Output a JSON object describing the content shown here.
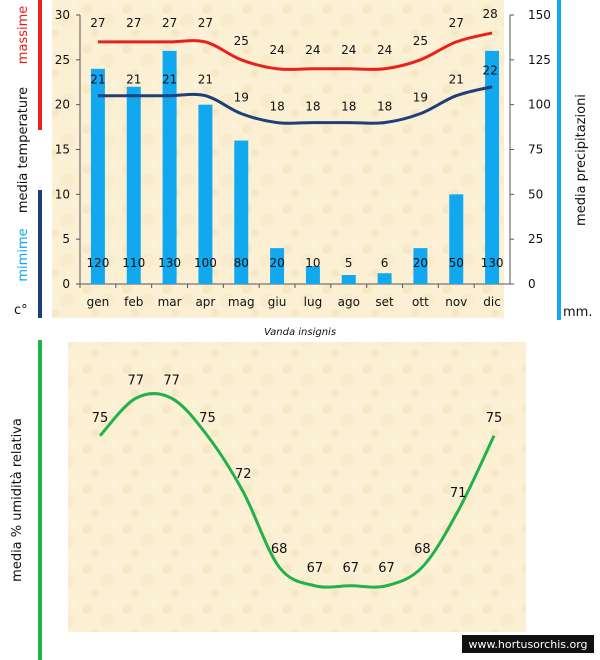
{
  "chart_data": [
    {
      "type": "bar+line",
      "title": "Vanda insignis",
      "categories": [
        "gen",
        "feb",
        "mar",
        "apr",
        "mag",
        "giu",
        "lug",
        "ago",
        "set",
        "ott",
        "nov",
        "dic"
      ],
      "left_axis": {
        "label_parts": [
          "media  temperature",
          "massime",
          "mimime"
        ],
        "unit": "c°",
        "ylim": [
          0,
          30
        ],
        "ticks": [
          0,
          5,
          10,
          15,
          20,
          25,
          30
        ]
      },
      "right_axis": {
        "label": "media  precipitazioni",
        "unit": "mm.",
        "ylim": [
          0,
          150
        ],
        "ticks": [
          0,
          25,
          50,
          75,
          100,
          125,
          150
        ]
      },
      "series": [
        {
          "name": "massime",
          "kind": "line",
          "axis": "left",
          "color": "#e8211b",
          "values": [
            27,
            27,
            27,
            27,
            25,
            24,
            24,
            24,
            24,
            25,
            27,
            28
          ]
        },
        {
          "name": "mimime",
          "kind": "line",
          "axis": "left",
          "color": "#1f3f7a",
          "values": [
            21,
            21,
            21,
            21,
            19,
            18,
            18,
            18,
            18,
            19,
            21,
            22
          ]
        },
        {
          "name": "precipitazioni",
          "kind": "bar",
          "axis": "right",
          "color": "#12a8ef",
          "values": [
            120,
            110,
            130,
            100,
            80,
            20,
            10,
            5,
            6,
            20,
            50,
            130
          ]
        }
      ]
    },
    {
      "type": "line",
      "ylabel": "media %  umidità relativa",
      "series": [
        {
          "name": "umidità relativa",
          "color": "#22b14c",
          "values": [
            75,
            77,
            77,
            75,
            72,
            68,
            67,
            67,
            67,
            68,
            71,
            75
          ]
        }
      ],
      "ylim": [
        64,
        80
      ]
    }
  ],
  "watermark": "www.hortusorchis.org"
}
